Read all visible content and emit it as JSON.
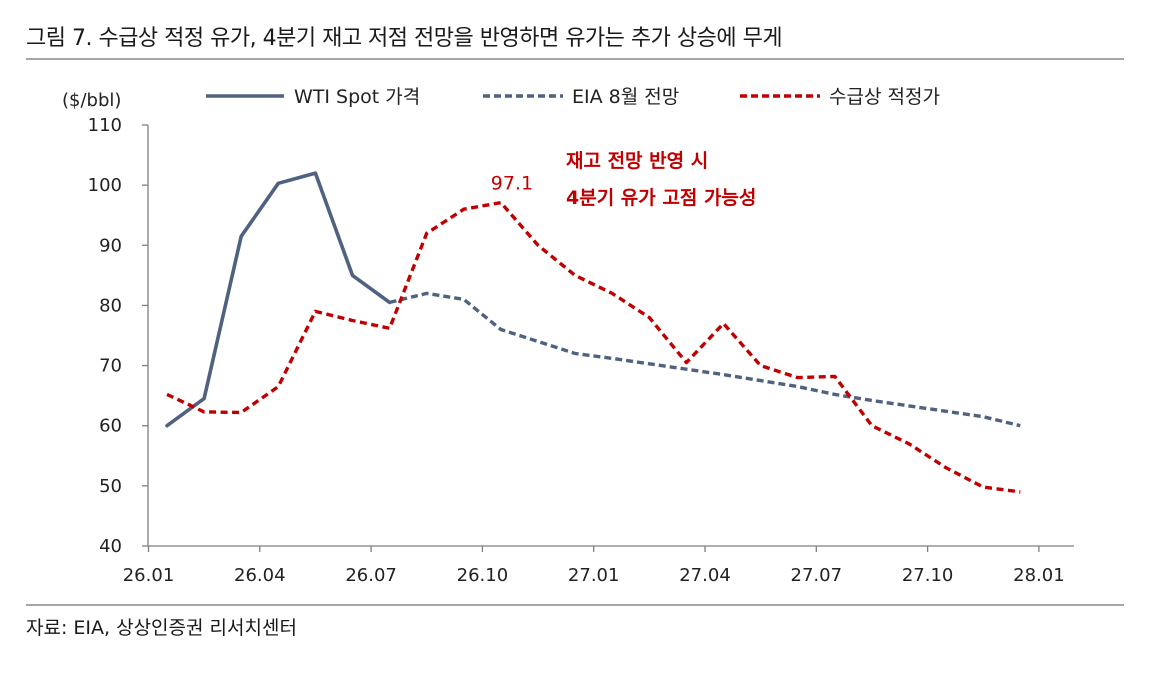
{
  "title": "그림 7. 수급상 적정 유가, 4분기 재고 저점 전망을 반영하면 유가는 추가 상승에 무게",
  "source": "자료: EIA,  상상인증권  리서치센터",
  "chart_data": {
    "type": "line",
    "ylabel": "($/bbl)",
    "ylim": [
      40,
      110
    ],
    "yticks": [
      40,
      50,
      60,
      70,
      80,
      90,
      100,
      110
    ],
    "xticks": [
      "26.01",
      "26.04",
      "26.07",
      "26.10",
      "27.01",
      "27.04",
      "27.07",
      "27.10",
      "28.01"
    ],
    "legend_position": "top",
    "grid": false,
    "series": [
      {
        "name": "WTI Spot 가격",
        "color": "#4f6280",
        "style": "solid",
        "points": [
          [
            "26.01",
            60.0
          ],
          [
            "26.02",
            64.5
          ],
          [
            "26.03",
            91.5
          ],
          [
            "26.04",
            100.3
          ],
          [
            "26.05",
            102.0
          ],
          [
            "26.06",
            85.0
          ],
          [
            "26.07",
            80.5
          ]
        ]
      },
      {
        "name": "EIA 8월 전망",
        "color": "#4f6280",
        "style": "dashed",
        "points": [
          [
            "26.07",
            80.5
          ],
          [
            "26.08",
            82.0
          ],
          [
            "26.09",
            81.0
          ],
          [
            "26.10",
            76.0
          ],
          [
            "26.11",
            74.0
          ],
          [
            "26.12",
            72.0
          ],
          [
            "27.01",
            71.2
          ],
          [
            "27.02",
            70.3
          ],
          [
            "27.03",
            69.4
          ],
          [
            "27.04",
            68.5
          ],
          [
            "27.05",
            67.5
          ],
          [
            "27.06",
            66.5
          ],
          [
            "27.07",
            65.2
          ],
          [
            "27.08",
            64.2
          ],
          [
            "27.09",
            63.3
          ],
          [
            "27.10",
            62.4
          ],
          [
            "27.11",
            61.5
          ],
          [
            "27.12",
            60.0
          ]
        ]
      },
      {
        "name": "수급상 적정가",
        "color": "#c00000",
        "style": "dashed",
        "points": [
          [
            "26.01",
            65.2
          ],
          [
            "26.02",
            62.3
          ],
          [
            "26.03",
            62.2
          ],
          [
            "26.04",
            66.5
          ],
          [
            "26.05",
            79.0
          ],
          [
            "26.06",
            77.5
          ],
          [
            "26.07",
            76.2
          ],
          [
            "26.08",
            92.0
          ],
          [
            "26.09",
            96.0
          ],
          [
            "26.10",
            97.1
          ],
          [
            "26.11",
            90.0
          ],
          [
            "26.12",
            85.0
          ],
          [
            "27.01",
            82.0
          ],
          [
            "27.02",
            78.0
          ],
          [
            "27.03",
            70.5
          ],
          [
            "27.04",
            77.0
          ],
          [
            "27.05",
            70.0
          ],
          [
            "27.06",
            68.0
          ],
          [
            "27.07",
            68.2
          ],
          [
            "27.08",
            60.0
          ],
          [
            "27.09",
            57.0
          ],
          [
            "27.10",
            53.0
          ],
          [
            "27.11",
            49.8
          ],
          [
            "27.12",
            49.0
          ]
        ]
      }
    ],
    "annotations": {
      "peak_label": "97.1",
      "peak_point": [
        "26.10",
        97.1
      ],
      "note_line1": "재고 전망 반영 시",
      "note_line2": "4분기 유가 고점 가능성"
    }
  }
}
